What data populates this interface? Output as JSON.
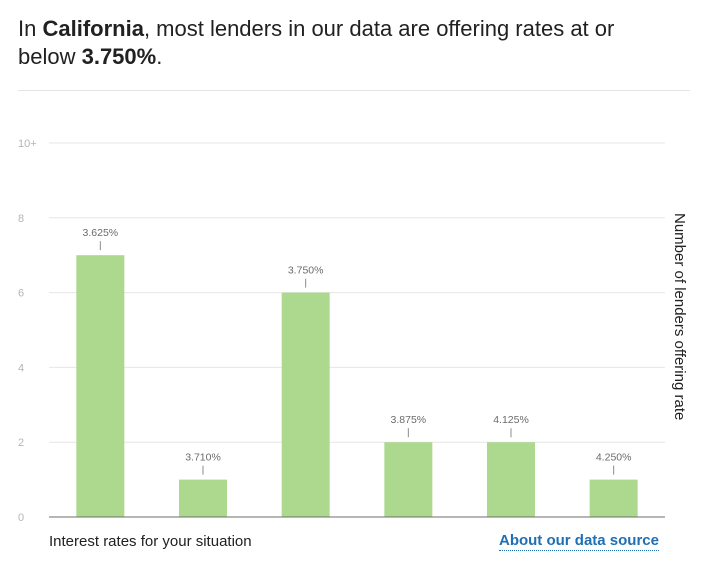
{
  "headline": {
    "prefix": "In ",
    "state": "California",
    "middle": ", most lenders in our data are offering rates at or below ",
    "rate": "3.750%",
    "suffix": "."
  },
  "footer": {
    "xlabel": "Interest rates for your situation",
    "source_link": "About our data source"
  },
  "colors": {
    "bar": "#add98e",
    "grid": "#e6e6e6",
    "link": "#1f6fb5"
  },
  "chart_data": {
    "type": "bar",
    "title": "",
    "xlabel": "Interest rates for your situation",
    "ylabel": "Number of lenders offering rate",
    "categories": [
      "3.625%",
      "3.710%",
      "3.750%",
      "3.875%",
      "4.125%",
      "4.250%"
    ],
    "values": [
      7,
      1,
      6,
      2,
      2,
      1
    ],
    "yticks": [
      "0",
      "2",
      "4",
      "6",
      "8",
      "10+"
    ],
    "ylim": [
      0,
      10
    ],
    "grid": true,
    "legend": "none"
  }
}
